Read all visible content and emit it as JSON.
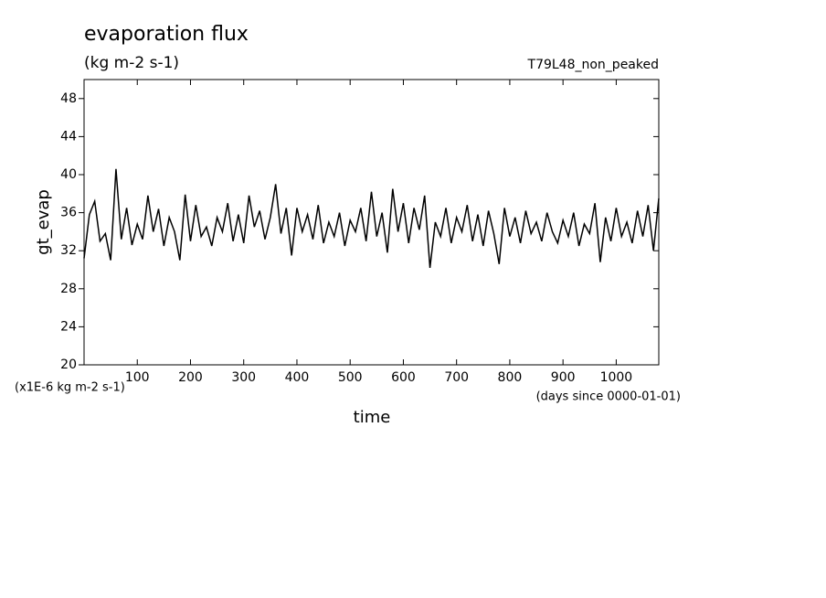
{
  "chart_data": {
    "type": "line",
    "title": "evaporation flux",
    "subtitle": "(kg m-2 s-1)",
    "run_label": "T79L48_non_peaked",
    "y_label": "gt_evap",
    "x_label": "time",
    "y_units": "(x1E-6 kg m-2 s-1)",
    "x_units": "(days since 0000-01-01)",
    "color": "#000000",
    "xlim": [
      0,
      1080
    ],
    "ylim": [
      20,
      50
    ],
    "xticks": [
      100,
      200,
      300,
      400,
      500,
      600,
      700,
      800,
      900,
      1000
    ],
    "yticks": [
      20,
      24,
      28,
      32,
      36,
      40,
      44,
      48
    ],
    "x": [
      0,
      10,
      20,
      30,
      40,
      50,
      60,
      70,
      80,
      90,
      100,
      110,
      120,
      130,
      140,
      150,
      160,
      170,
      180,
      190,
      200,
      210,
      220,
      230,
      240,
      250,
      260,
      270,
      280,
      290,
      300,
      310,
      320,
      330,
      340,
      350,
      360,
      370,
      380,
      390,
      400,
      410,
      420,
      430,
      440,
      450,
      460,
      470,
      480,
      490,
      500,
      510,
      520,
      530,
      540,
      550,
      560,
      570,
      580,
      590,
      600,
      610,
      620,
      630,
      640,
      650,
      660,
      670,
      680,
      690,
      700,
      710,
      720,
      730,
      740,
      750,
      760,
      770,
      780,
      790,
      800,
      810,
      820,
      830,
      840,
      850,
      860,
      870,
      880,
      890,
      900,
      910,
      920,
      930,
      940,
      950,
      960,
      970,
      980,
      990,
      1000,
      1010,
      1020,
      1030,
      1040,
      1050,
      1060,
      1070,
      1080
    ],
    "values": [
      31.2,
      35.8,
      37.2,
      33.0,
      33.8,
      31.0,
      40.6,
      33.2,
      36.5,
      32.6,
      34.8,
      33.2,
      37.8,
      34.0,
      36.4,
      32.5,
      35.5,
      34.0,
      31.0,
      37.9,
      33.0,
      36.8,
      33.5,
      34.5,
      32.5,
      35.5,
      34.0,
      37.0,
      33.0,
      35.8,
      32.8,
      37.8,
      34.5,
      36.2,
      33.2,
      35.5,
      39.0,
      33.8,
      36.5,
      31.5,
      36.5,
      34.0,
      35.8,
      33.2,
      36.8,
      32.8,
      35.0,
      33.5,
      36.0,
      32.5,
      35.2,
      34.0,
      36.5,
      33.0,
      38.2,
      33.5,
      36.0,
      31.8,
      38.5,
      34.0,
      37.0,
      32.8,
      36.5,
      34.2,
      37.8,
      30.2,
      35.0,
      33.5,
      36.5,
      32.8,
      35.5,
      34.0,
      36.8,
      33.0,
      35.8,
      32.5,
      36.2,
      33.8,
      30.6,
      36.5,
      33.5,
      35.5,
      32.8,
      36.2,
      33.8,
      35.0,
      33.0,
      36.0,
      34.0,
      32.8,
      35.2,
      33.5,
      36.0,
      32.5,
      34.8,
      33.8,
      37.0,
      30.8,
      35.5,
      33.0,
      36.5,
      33.5,
      35.0,
      32.8,
      36.2,
      33.5,
      36.8,
      32.0,
      37.5
    ]
  }
}
